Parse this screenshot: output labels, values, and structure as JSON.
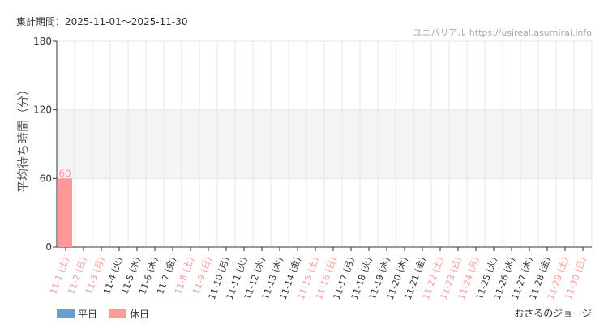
{
  "header": {
    "period": "集計期間：2025-11-01～2025-11-30",
    "source": "ユニバリアル https://usjreal.asumirai.info",
    "credit": "おさるのジョージ"
  },
  "colors": {
    "weekday": "#6b9bd1",
    "holiday": "#ff9999",
    "band": "#f4f4f4"
  },
  "chart_data": {
    "type": "bar",
    "ylabel": "平均待ち時間（分）",
    "ylim": [
      0,
      180
    ],
    "yticks": [
      0,
      60,
      120,
      180
    ],
    "shaded_band": [
      60,
      120
    ],
    "grid": true,
    "categories": [
      "11-1 (土)",
      "11-2 (日)",
      "11-3 (月)",
      "11-4 (火)",
      "11-5 (水)",
      "11-6 (木)",
      "11-7 (金)",
      "11-8 (土)",
      "11-9 (日)",
      "11-10 (月)",
      "11-11 (火)",
      "11-12 (水)",
      "11-13 (木)",
      "11-14 (金)",
      "11-15 (土)",
      "11-16 (日)",
      "11-17 (月)",
      "11-18 (火)",
      "11-19 (水)",
      "11-20 (木)",
      "11-21 (金)",
      "11-22 (土)",
      "11-23 (日)",
      "11-24 (月)",
      "11-25 (火)",
      "11-26 (水)",
      "11-27 (木)",
      "11-28 (金)",
      "11-29 (土)",
      "11-30 (日)"
    ],
    "holiday": [
      1,
      1,
      1,
      0,
      0,
      0,
      0,
      1,
      1,
      0,
      0,
      0,
      0,
      0,
      1,
      1,
      0,
      0,
      0,
      0,
      0,
      1,
      1,
      1,
      0,
      0,
      0,
      0,
      1,
      1
    ],
    "values": [
      60,
      null,
      null,
      null,
      null,
      null,
      null,
      null,
      null,
      null,
      null,
      null,
      null,
      null,
      null,
      null,
      null,
      null,
      null,
      null,
      null,
      null,
      null,
      null,
      null,
      null,
      null,
      null,
      null,
      null
    ],
    "data_labels": [
      "60"
    ],
    "legend": [
      {
        "name": "平日",
        "type": "weekday"
      },
      {
        "name": "休日",
        "type": "holiday"
      }
    ],
    "legend_position": "bottom-left"
  }
}
